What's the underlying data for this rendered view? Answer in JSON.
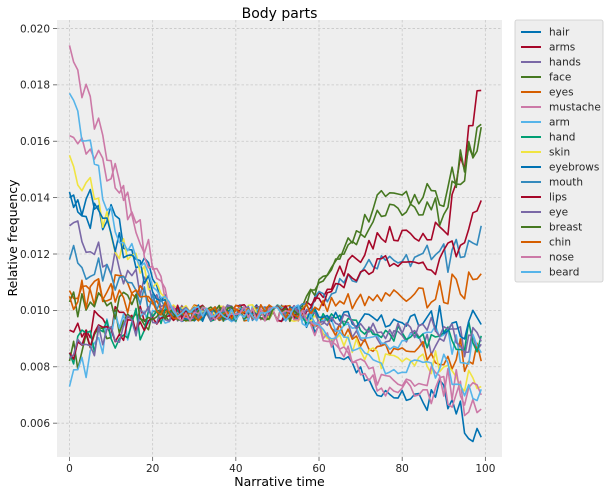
{
  "chart_data": {
    "type": "line",
    "title": "Body parts",
    "xlabel": "Narrative time",
    "ylabel": "Relative frequency",
    "xlim": [
      -3,
      104
    ],
    "ylim": [
      0.0048,
      0.0203
    ],
    "xticks": [
      0,
      20,
      40,
      60,
      80,
      100
    ],
    "yticks": [
      0.006,
      0.008,
      0.01,
      0.012,
      0.014,
      0.016,
      0.018,
      0.02
    ],
    "grid": true,
    "legend_position": "outside-top-right",
    "series": [
      {
        "name": "hair",
        "color": "#0072B2",
        "start": 0.0142,
        "end": 0.0055,
        "early": 0.0132,
        "late": 0.007
      },
      {
        "name": "arms",
        "color": "#A60628",
        "start": 0.0093,
        "end": 0.0178,
        "early": 0.0097,
        "late": 0.0127
      },
      {
        "name": "hands",
        "color": "#7A68A6",
        "start": 0.013,
        "end": 0.0088,
        "early": 0.0118,
        "late": 0.009
      },
      {
        "name": "face",
        "color": "#467821",
        "start": 0.0082,
        "end": 0.0166,
        "early": 0.0095,
        "late": 0.014
      },
      {
        "name": "eyes",
        "color": "#D55E00",
        "start": 0.0107,
        "end": 0.0082,
        "early": 0.0108,
        "late": 0.0086
      },
      {
        "name": "mustache",
        "color": "#CC79A7",
        "start": 0.0162,
        "end": 0.0065,
        "early": 0.015,
        "late": 0.0072
      },
      {
        "name": "arm",
        "color": "#56B4E9",
        "start": 0.0073,
        "end": 0.0085,
        "early": 0.0093,
        "late": 0.0089
      },
      {
        "name": "hand",
        "color": "#009E73",
        "start": 0.0085,
        "end": 0.0091,
        "early": 0.0092,
        "late": 0.0092
      },
      {
        "name": "skin",
        "color": "#F0E442",
        "start": 0.0155,
        "end": 0.0073,
        "early": 0.0128,
        "late": 0.0082
      },
      {
        "name": "eyebrows",
        "color": "#0072B2",
        "start": 0.014,
        "end": 0.0095,
        "early": 0.0128,
        "late": 0.0096
      },
      {
        "name": "mouth",
        "color": "#348ABD",
        "start": 0.0118,
        "end": 0.013,
        "early": 0.0113,
        "late": 0.0118
      },
      {
        "name": "lips",
        "color": "#A60628",
        "start": 0.0085,
        "end": 0.0139,
        "early": 0.0093,
        "late": 0.0118
      },
      {
        "name": "eye",
        "color": "#7A68A6",
        "start": 0.0083,
        "end": 0.0089,
        "early": 0.0093,
        "late": 0.0093
      },
      {
        "name": "breast",
        "color": "#467821",
        "start": 0.0103,
        "end": 0.0165,
        "early": 0.0101,
        "late": 0.0135
      },
      {
        "name": "chin",
        "color": "#D55E00",
        "start": 0.0105,
        "end": 0.0113,
        "early": 0.0107,
        "late": 0.0106
      },
      {
        "name": "nose",
        "color": "#CC79A7",
        "start": 0.0194,
        "end": 0.007,
        "early": 0.015,
        "late": 0.0075
      },
      {
        "name": "beard",
        "color": "#56B4E9",
        "start": 0.0177,
        "end": 0.0072,
        "early": 0.0133,
        "late": 0.008
      }
    ]
  }
}
